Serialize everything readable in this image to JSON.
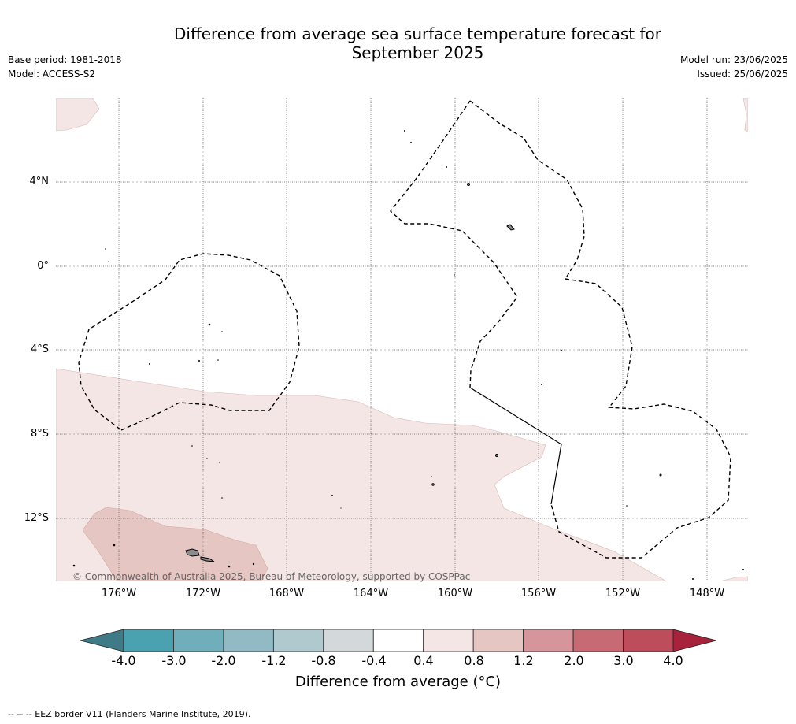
{
  "header": {
    "title_line1": "Difference from average sea surface temperature forecast for",
    "title_line2": "September 2025",
    "base_period": "Base period: 1981-2018",
    "model": "Model: ACCESS-S2",
    "model_run": "Model run: 23/06/2025",
    "issued": "Issued: 25/06/2025"
  },
  "map": {
    "lat_labels": [
      "4°N",
      "0°",
      "4°S",
      "8°S",
      "12°S"
    ],
    "lon_labels": [
      "176°W",
      "172°W",
      "168°W",
      "164°W",
      "160°W",
      "156°W",
      "152°W",
      "148°W"
    ],
    "copyright": "© Commonwealth of Australia 2025, Bureau of Meteorology, supported by COSPPac",
    "colors": {
      "land": "#8c8c8c",
      "band_0_4_to_0_8": "#f4e6e4",
      "band_0_8_to_1_2": "#e6c6c2"
    }
  },
  "colorbar": {
    "ticks": [
      "-4.0",
      "-3.0",
      "-2.0",
      "-1.2",
      "-0.8",
      "-0.4",
      "0.4",
      "0.8",
      "1.2",
      "2.0",
      "3.0",
      "4.0"
    ],
    "colors": [
      "#3e7b86",
      "#4aa2b1",
      "#71aebb",
      "#91bac5",
      "#afc9cf",
      "#d3d8da",
      "#ffffff",
      "#f4e6e4",
      "#e6c6c2",
      "#d6959a",
      "#c86a74",
      "#bd4d5a",
      "#a8223b"
    ],
    "label": "Difference from average (°C)"
  },
  "footer": {
    "eez_note": "--  --  -- EEZ border V11 (Flanders Marine Institute, 2019)."
  }
}
